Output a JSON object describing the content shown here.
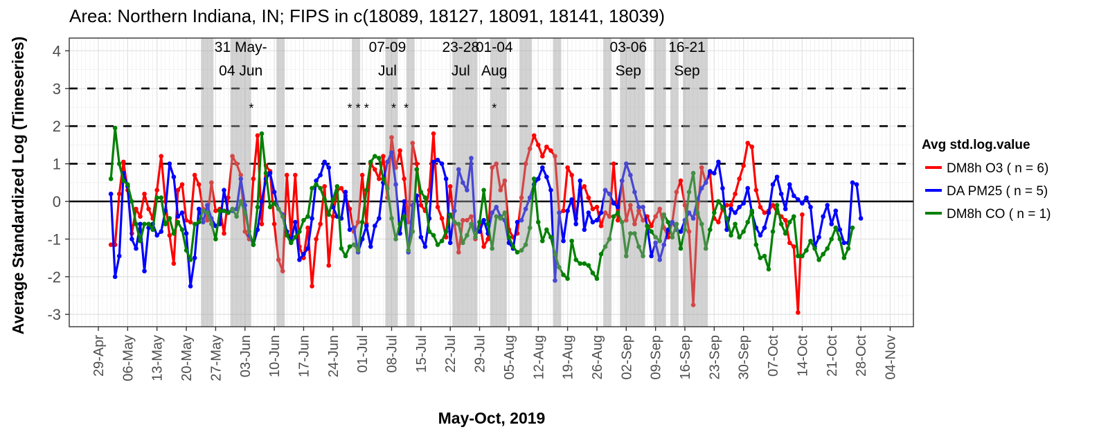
{
  "chart_data": {
    "type": "line",
    "title": "Area: Northern Indiana, IN; FIPS in c(18089, 18127, 18091, 18141, 18039)",
    "xlabel": "May-Oct, 2019",
    "ylabel": "Average Standardized Log (Timeseries)",
    "ylim": [
      -3.35,
      4.3
    ],
    "yticks": [
      -3,
      -2,
      -1,
      0,
      1,
      2,
      3,
      4
    ],
    "xlim_days_from_29Apr": [
      -8,
      193
    ],
    "xticks": [
      "29-Apr",
      "06-May",
      "13-May",
      "20-May",
      "27-May",
      "03-Jun",
      "10-Jun",
      "17-Jun",
      "24-Jun",
      "01-Jul",
      "08-Jul",
      "15-Jul",
      "22-Jul",
      "29-Jul",
      "05-Aug",
      "12-Aug",
      "19-Aug",
      "26-Aug",
      "02-Sep",
      "09-Sep",
      "16-Sep",
      "23-Sep",
      "30-Sep",
      "07-Oct",
      "14-Oct",
      "21-Oct",
      "28-Oct",
      "04-Nov"
    ],
    "grid": true,
    "reference_lines": [
      {
        "y": 0,
        "style": "solid"
      },
      {
        "y": 1,
        "style": "dashed"
      },
      {
        "y": 2,
        "style": "dashed"
      },
      {
        "y": 3,
        "style": "dashed"
      }
    ],
    "legend": {
      "title": "Avg std.log.value",
      "placement": "right"
    },
    "series": [
      {
        "name": "DM8h O3 ( n = 6)",
        "color": "#ff0000",
        "start_day": 3,
        "values": [
          -1.15,
          -1.15,
          0.2,
          1.05,
          0.3,
          -0.85,
          -0.2,
          -0.4,
          0.2,
          -0.2,
          -0.45,
          0.3,
          1.2,
          0.0,
          -0.9,
          -1.65,
          0.3,
          0.45,
          -0.5,
          -0.55,
          0.7,
          0.45,
          -0.2,
          -0.5,
          0.5,
          -0.25,
          -0.2,
          -0.85,
          0.1,
          1.2,
          1.0,
          0.7,
          -0.8,
          -1.0,
          0.6,
          1.75,
          -0.6,
          0.95,
          0.8,
          -0.6,
          -1.55,
          -1.85,
          0.7,
          -0.9,
          0.7,
          -1.2,
          -1.5,
          -0.7,
          -2.25,
          -1.0,
          -0.6,
          0.4,
          -1.7,
          -0.4,
          0.3,
          0.35,
          0.15,
          -0.2,
          -0.8,
          -0.55,
          0.7,
          -0.6,
          1.0,
          0.85,
          0.6,
          1.2,
          0.1,
          1.7,
          0.9,
          1.35,
          0.6,
          -0.55,
          1.55,
          1.0,
          -0.1,
          -0.25,
          0.3,
          1.8,
          -0.15,
          -0.45,
          -0.95,
          0.4,
          -0.6,
          -1.35,
          -0.5,
          -0.5,
          -0.4,
          -1.0,
          -0.55,
          -1.2,
          -1.0,
          0.9,
          1.0,
          0.3,
          0.55,
          -0.75,
          -0.95,
          -0.85,
          0.1,
          1.0,
          1.4,
          1.75,
          1.5,
          1.2,
          1.45,
          1.35,
          1.2,
          -0.3,
          -0.25,
          0.9,
          0.7,
          -0.45,
          0.3,
          0.4,
          0.1,
          -0.2,
          -0.15,
          -0.65,
          -0.3,
          -0.4,
          1.0,
          -0.5,
          0.55,
          -0.5,
          -0.1,
          -0.6,
          -0.25,
          -0.5,
          -0.4,
          -0.65,
          -0.4,
          -0.2,
          -0.7,
          -0.95,
          -0.55,
          0.25,
          0.55,
          -0.1,
          -0.8,
          -2.75,
          -0.35,
          0.9,
          0.5,
          0.75,
          -0.45,
          -0.55,
          -0.2,
          -0.1,
          -0.1,
          0.2,
          0.6,
          0.95,
          1.55,
          1.45,
          0.3,
          -0.15,
          -0.3,
          -0.25,
          -0.1,
          -0.3,
          -0.4,
          -0.5,
          -1.1,
          -1.2,
          -2.95,
          -0.35
        ]
      },
      {
        "name": "DA PM25 ( n = 5)",
        "color": "#0000ff",
        "start_day": 3,
        "values": [
          0.2,
          -2.0,
          -1.45,
          0.75,
          0.4,
          -1.0,
          -1.25,
          -0.6,
          -1.85,
          -0.7,
          -0.6,
          -0.9,
          -0.8,
          -0.25,
          1.0,
          0.65,
          -0.4,
          -0.3,
          -0.85,
          -2.25,
          -1.5,
          -0.2,
          -0.55,
          -0.1,
          -0.45,
          -0.65,
          -0.6,
          0.3,
          -0.3,
          -0.25,
          -0.2,
          0.6,
          -0.1,
          -0.9,
          -1.15,
          -0.75,
          0.0,
          0.6,
          0.75,
          0.25,
          -0.2,
          -0.35,
          -0.8,
          -1.05,
          -0.55,
          -1.55,
          -1.4,
          -1.25,
          -0.45,
          0.55,
          0.7,
          1.05,
          0.9,
          -0.15,
          -0.4,
          -0.45,
          0.25,
          -0.75,
          -0.7,
          -1.35,
          -1.0,
          -0.65,
          -1.2,
          -0.65,
          -0.45,
          0.5,
          1.05,
          1.3,
          0.45,
          -0.85,
          0.0,
          -1.35,
          -0.1,
          0.15,
          -0.95,
          -1.2,
          -0.45,
          1.05,
          1.1,
          1.0,
          0.6,
          -1.1,
          -0.25,
          0.85,
          0.5,
          0.3,
          1.15,
          -0.75,
          -0.8,
          -0.5,
          -0.85,
          -0.3,
          -0.15,
          -0.4,
          -0.5,
          -1.1,
          -1.25,
          -0.55,
          -0.5,
          -0.2,
          0.1,
          0.45,
          0.6,
          0.9,
          0.65,
          0.3,
          -2.1,
          -0.3,
          -1.05,
          -0.25,
          0.05,
          -0.6,
          0.55,
          -0.75,
          -0.3,
          -0.55,
          -0.5,
          -0.3,
          0.3,
          0.2,
          -0.05,
          -0.15,
          0.55,
          1.0,
          0.7,
          0.25,
          -0.15,
          -0.15,
          -0.65,
          -1.45,
          -1.1,
          -1.55,
          -1.15,
          -0.75,
          -0.55,
          -0.75,
          -0.8,
          -0.5,
          -0.3,
          -0.45,
          0.05,
          0.35,
          0.5,
          0.8,
          0.75,
          1.05,
          0.35,
          -0.75,
          -0.2,
          -0.3,
          -0.15,
          -0.05,
          0.35,
          -0.3,
          -0.7,
          -0.9,
          -0.7,
          -0.3,
          0.45,
          0.65,
          0.2,
          -0.2,
          0.45,
          0.15,
          0.05,
          -0.05,
          0.1,
          -0.15,
          -1.2,
          -0.95,
          -0.4,
          -0.1,
          -0.6,
          -0.25,
          -0.75,
          -1.1,
          -1.1,
          0.5,
          0.45,
          -0.45
        ]
      },
      {
        "name": "DM8h CO ( n = 1)",
        "color": "#008000",
        "start_day": 3,
        "values": [
          0.6,
          1.95,
          1.0,
          0.55,
          0.45,
          0.0,
          -0.6,
          -1.05,
          -0.6,
          -0.6,
          -0.75,
          0.1,
          0.1,
          -0.6,
          -0.45,
          -0.85,
          -0.55,
          -0.75,
          -1.3,
          -1.55,
          -0.6,
          -0.55,
          -0.25,
          -0.3,
          -0.6,
          -1.0,
          -0.25,
          -0.25,
          -0.3,
          -0.2,
          -0.4,
          0.0,
          -0.3,
          -0.8,
          -1.15,
          -0.15,
          1.8,
          0.75,
          -0.15,
          -0.05,
          -0.2,
          -0.4,
          -0.9,
          -1.1,
          -0.95,
          -0.8,
          -0.5,
          -0.4,
          0.35,
          0.45,
          0.35,
          0.05,
          -0.35,
          0.05,
          0.4,
          -1.25,
          -1.45,
          -1.2,
          -1.15,
          -1.3,
          -0.55,
          0.3,
          1.05,
          1.2,
          1.15,
          0.6,
          0.35,
          -0.45,
          -1.0,
          -0.6,
          -0.4,
          -1.3,
          -0.8,
          0.85,
          0.25,
          0.1,
          -0.8,
          -0.9,
          -1.15,
          -1.05,
          -0.8,
          -0.35,
          -0.55,
          -0.6,
          -1.1,
          -0.9,
          -0.6,
          -0.95,
          -0.55,
          0.3,
          -0.6,
          -1.25,
          -0.4,
          -0.45,
          -0.3,
          -0.95,
          -1.2,
          -1.35,
          -1.3,
          -1.15,
          -0.7,
          0.6,
          -0.55,
          -1.05,
          -0.75,
          -0.95,
          -1.4,
          -1.75,
          -1.95,
          -2.05,
          -1.05,
          -1.55,
          -1.65,
          -1.65,
          -1.7,
          -1.9,
          -2.05,
          -1.4,
          -1.2,
          -1.0,
          -0.4,
          -0.3,
          -0.55,
          -1.45,
          -0.85,
          -0.85,
          -1.2,
          -1.45,
          -0.65,
          -0.8,
          -0.95,
          -1.05,
          -0.35,
          -0.55,
          -0.95,
          -0.6,
          -1.25,
          -0.75,
          0.25,
          0.75,
          -0.3,
          -0.6,
          -1.25,
          -0.75,
          -0.3,
          0.0,
          -0.15,
          -0.45,
          -0.9,
          -0.6,
          -0.95,
          -0.8,
          -0.55,
          -0.25,
          -1.15,
          -1.5,
          -1.45,
          -1.8,
          -0.8,
          -0.1,
          -0.6,
          -0.85,
          -0.55,
          -0.4,
          -1.45,
          -1.45,
          -1.3,
          -1.05,
          -1.25,
          -1.55,
          -1.4,
          -1.25,
          -1.0,
          -0.7,
          -1.0,
          -1.5,
          -1.25,
          -0.7
        ]
      }
    ],
    "shaded_periods": [
      {
        "start": "24-May",
        "end": "26-May"
      },
      {
        "start": "31-May",
        "end": "04-Jun"
      },
      {
        "start": "11-Jun",
        "end": "12-Jun"
      },
      {
        "start": "29-Jun",
        "end": "30-Jun"
      },
      {
        "start": "07-Jul",
        "end": "09-Jul"
      },
      {
        "start": "12-Jul",
        "end": "13-Jul"
      },
      {
        "start": "23-Jul",
        "end": "28-Jul"
      },
      {
        "start": "01-Aug",
        "end": "04-Aug"
      },
      {
        "start": "08-Aug",
        "end": "10-Aug"
      },
      {
        "start": "16-Aug",
        "end": "17-Aug"
      },
      {
        "start": "28-Aug",
        "end": "29-Aug"
      },
      {
        "start": "01-Sep",
        "end": "02-Sep"
      },
      {
        "start": "03-Sep",
        "end": "06-Sep"
      },
      {
        "start": "09-Sep",
        "end": "11-Sep"
      },
      {
        "start": "13-Sep",
        "end": "14-Sep"
      },
      {
        "start": "16-Sep",
        "end": "21-Sep"
      }
    ],
    "annotations": [
      {
        "line1": "31 May-",
        "line2": "04 Jun",
        "day": 34
      },
      {
        "line1": "07-09",
        "line2": "Jul",
        "day": 69
      },
      {
        "line1": "23-28",
        "line2": "Jul",
        "day": 86.5
      },
      {
        "line1": "01-04",
        "line2": "Aug",
        "day": 94.5
      },
      {
        "line1": "03-06",
        "line2": "Sep",
        "day": 126.5
      },
      {
        "line1": "16-21",
        "line2": "Sep",
        "day": 140.5
      }
    ],
    "asterisks": [
      {
        "label": "*",
        "day": 36.5,
        "y": 2.55
      },
      {
        "label": "*",
        "day": 60,
        "y": 2.55
      },
      {
        "label": "*",
        "day": 62,
        "y": 2.55
      },
      {
        "label": "*",
        "day": 64,
        "y": 2.55
      },
      {
        "label": "*",
        "day": 70.5,
        "y": 2.55
      },
      {
        "label": "*",
        "day": 73.5,
        "y": 2.55
      },
      {
        "label": "*",
        "day": 94.5,
        "y": 2.55
      }
    ]
  }
}
